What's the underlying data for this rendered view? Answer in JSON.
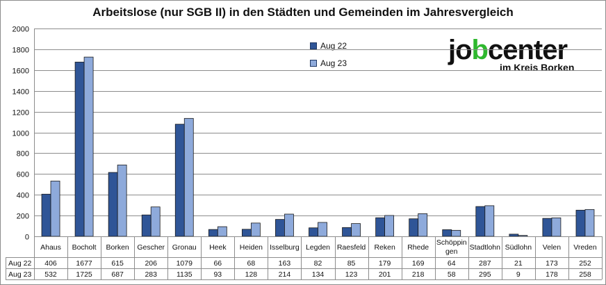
{
  "chart_data": {
    "type": "bar",
    "title": "Arbeitslose (nur SGB II) in den Städten und Gemeinden im Jahresvergleich",
    "categories": [
      "Ahaus",
      "Bocholt",
      "Borken",
      "Gescher",
      "Gronau",
      "Heek",
      "Heiden",
      "Isselburg",
      "Legden",
      "Raesfeld",
      "Reken",
      "Rhede",
      "Schöppin gen",
      "Stadtlohn",
      "Südlohn",
      "Velen",
      "Vreden"
    ],
    "series": [
      {
        "name": "Aug 22",
        "color": "#2f5597",
        "values": [
          406,
          1677,
          615,
          206,
          1079,
          66,
          68,
          163,
          82,
          85,
          179,
          169,
          64,
          287,
          21,
          173,
          252
        ]
      },
      {
        "name": "Aug 23",
        "color": "#8eaadb",
        "values": [
          532,
          1725,
          687,
          283,
          1135,
          93,
          128,
          214,
          134,
          123,
          201,
          218,
          58,
          295,
          9,
          178,
          258
        ]
      }
    ],
    "ylim": [
      0,
      2000
    ],
    "yticks": [
      0,
      200,
      400,
      600,
      800,
      1000,
      1200,
      1400,
      1600,
      1800,
      2000
    ],
    "grid": true,
    "legend_position": "top-center",
    "data_table": true
  },
  "logo": {
    "word_pre": "jo",
    "word_mid": "b",
    "word_post": "center",
    "subtitle": "im Kreis Borken"
  }
}
